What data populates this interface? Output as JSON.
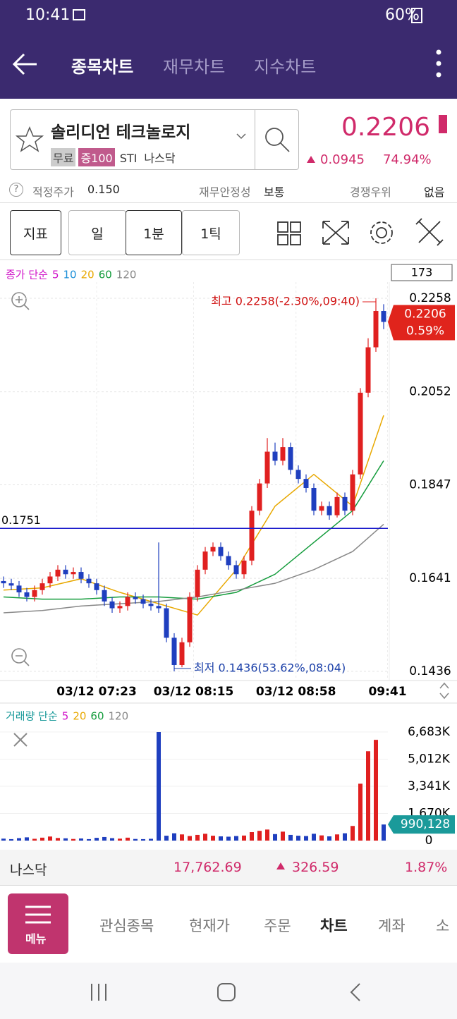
{
  "status": {
    "time": "10:41",
    "battery": "60%"
  },
  "header": {
    "tabs": [
      "종목차트",
      "재무차트",
      "지수차트"
    ]
  },
  "stock": {
    "name": "솔리디언 테크놀로지",
    "tags": [
      "무료",
      "증100",
      "STI",
      "나스닥"
    ],
    "price": "0.2206",
    "change": "0.0945",
    "change_pct": "74.94%"
  },
  "info": {
    "help": "?",
    "fair_label": "적정주가",
    "fair_value": "0.150",
    "stability_label": "재무안정성",
    "stability_value": "보통",
    "moat_label": "경쟁우위",
    "moat_value": "없음"
  },
  "toolbar": {
    "indicator": "지표",
    "periods": [
      "일",
      "1분",
      "1틱"
    ]
  },
  "chart_data": [
    {
      "type": "candlestick",
      "legend_title": "종가 단순",
      "legend": [
        {
          "name": "5",
          "color": "#d010c8"
        },
        {
          "name": "10",
          "color": "#1e90d8"
        },
        {
          "name": "20",
          "color": "#e8a800"
        },
        {
          "name": "60",
          "color": "#149c3c"
        },
        {
          "name": "120",
          "color": "#888888"
        }
      ],
      "count": "173",
      "open": [
        0.1635,
        0.163,
        0.1625,
        0.161,
        0.16,
        0.1615,
        0.163,
        0.1645,
        0.166,
        0.165,
        0.1655,
        0.164,
        0.163,
        0.1615,
        0.159,
        0.1575,
        0.158,
        0.16,
        0.1595,
        0.1585,
        0.158,
        0.1575,
        0.151,
        0.145,
        0.15,
        0.16,
        0.166,
        0.17,
        0.171,
        0.169,
        0.167,
        0.165,
        0.168,
        0.179,
        0.185,
        0.192,
        0.19,
        0.193,
        0.188,
        0.186,
        0.184,
        0.179,
        0.18,
        0.178,
        0.182,
        0.179,
        0.187,
        0.205,
        0.215,
        0.223
      ],
      "high": [
        0.1645,
        0.164,
        0.1635,
        0.162,
        0.1625,
        0.164,
        0.1655,
        0.167,
        0.167,
        0.1665,
        0.1665,
        0.165,
        0.164,
        0.1625,
        0.16,
        0.159,
        0.161,
        0.161,
        0.1605,
        0.1595,
        0.172,
        0.1585,
        0.152,
        0.151,
        0.161,
        0.167,
        0.171,
        0.172,
        0.172,
        0.17,
        0.168,
        0.169,
        0.18,
        0.186,
        0.195,
        0.194,
        0.195,
        0.194,
        0.189,
        0.187,
        0.185,
        0.181,
        0.181,
        0.183,
        0.183,
        0.188,
        0.206,
        0.217,
        0.2258,
        0.2245
      ],
      "low": [
        0.162,
        0.1615,
        0.16,
        0.159,
        0.159,
        0.1605,
        0.162,
        0.1635,
        0.164,
        0.164,
        0.163,
        0.162,
        0.1605,
        0.158,
        0.1565,
        0.1565,
        0.157,
        0.1585,
        0.1575,
        0.157,
        0.1565,
        0.15,
        0.1436,
        0.1445,
        0.149,
        0.159,
        0.165,
        0.169,
        0.168,
        0.166,
        0.164,
        0.164,
        0.167,
        0.178,
        0.184,
        0.189,
        0.189,
        0.187,
        0.185,
        0.183,
        0.178,
        0.178,
        0.177,
        0.1775,
        0.178,
        0.178,
        0.186,
        0.204,
        0.214,
        0.219
      ],
      "close": [
        0.163,
        0.1625,
        0.161,
        0.16,
        0.1615,
        0.163,
        0.1645,
        0.166,
        0.165,
        0.1655,
        0.164,
        0.163,
        0.1615,
        0.159,
        0.1575,
        0.158,
        0.16,
        0.1595,
        0.1585,
        0.158,
        0.1575,
        0.151,
        0.145,
        0.15,
        0.16,
        0.166,
        0.17,
        0.171,
        0.169,
        0.167,
        0.165,
        0.168,
        0.179,
        0.185,
        0.192,
        0.19,
        0.193,
        0.188,
        0.186,
        0.184,
        0.179,
        0.18,
        0.178,
        0.182,
        0.179,
        0.187,
        0.205,
        0.215,
        0.223,
        0.2206
      ],
      "up_color": "#e02020",
      "down_color": "#1f3fbf",
      "ylim": [
        0.1436,
        0.2258
      ],
      "yticks": [
        0.2258,
        0.2052,
        0.1847,
        0.1641,
        0.1436
      ],
      "xticks": [
        {
          "value": 12,
          "label": "03/12 07:23"
        },
        {
          "value": 24.5,
          "label": "03/12 08:15"
        },
        {
          "value": 37.7,
          "label": "03/12 08:58"
        },
        {
          "value": 49.5,
          "label": "09:41"
        }
      ],
      "series": [
        {
          "name": "20",
          "color": "#e8a800",
          "x": [
            0,
            5,
            10,
            15,
            20,
            25,
            30,
            35,
            40,
            45,
            49
          ],
          "values": [
            0.1615,
            0.162,
            0.164,
            0.161,
            0.1585,
            0.156,
            0.166,
            0.18,
            0.187,
            0.18,
            0.2
          ]
        },
        {
          "name": "60",
          "color": "#149c3c",
          "x": [
            0,
            5,
            10,
            15,
            20,
            25,
            30,
            35,
            40,
            45,
            49
          ],
          "values": [
            0.16,
            0.1595,
            0.1595,
            0.16,
            0.16,
            0.1595,
            0.161,
            0.165,
            0.172,
            0.179,
            0.19
          ]
        },
        {
          "name": "120",
          "color": "#888888",
          "x": [
            0,
            5,
            10,
            15,
            20,
            25,
            30,
            35,
            40,
            45,
            49
          ],
          "values": [
            0.1565,
            0.157,
            0.158,
            0.1585,
            0.159,
            0.16,
            0.1615,
            0.163,
            0.166,
            0.17,
            0.176
          ]
        }
      ],
      "hline": 0.1751,
      "hline_color": "#1a1acc",
      "current": 0.2206,
      "current_pct": "0.59%",
      "max_annotation": "최고 0.2258(-2.30%,09:40)",
      "min_annotation": "최저 0.1436(53.62%,08:04)"
    },
    {
      "type": "bar",
      "legend_title": "거래량 단순",
      "legend": [
        {
          "name": "5",
          "color": "#d010c8"
        },
        {
          "name": "20",
          "color": "#e8a800"
        },
        {
          "name": "60",
          "color": "#149c3c"
        },
        {
          "name": "120",
          "color": "#888888"
        }
      ],
      "values": [
        120000,
        90000,
        150000,
        200000,
        110000,
        180000,
        250000,
        160000,
        140000,
        100000,
        130000,
        90000,
        170000,
        220000,
        150000,
        120000,
        180000,
        100000,
        90000,
        110000,
        6683000,
        300000,
        450000,
        380000,
        280000,
        350000,
        420000,
        300000,
        260000,
        240000,
        280000,
        310000,
        520000,
        600000,
        680000,
        400000,
        550000,
        350000,
        300000,
        280000,
        420000,
        320000,
        260000,
        380000,
        450000,
        900000,
        3500000,
        5500000,
        6200000,
        990128
      ],
      "ylim": [
        0,
        6683000
      ],
      "yticks": [
        {
          "value": 6683000,
          "label": "6,683K"
        },
        {
          "value": 5012000,
          "label": "5,012K"
        },
        {
          "value": 3341000,
          "label": "3,341K"
        },
        {
          "value": 1670000,
          "label": "1,670K"
        },
        0
      ],
      "current": {
        "value": 990128,
        "label": "990,128"
      },
      "current_color": "#1a9a9a"
    }
  ],
  "index_row": {
    "name": "나스닥",
    "value": "17,762.69",
    "change": "326.59",
    "pct": "1.87%"
  },
  "nav": {
    "menu": "메뉴",
    "tabs": [
      "관심종목",
      "현재가",
      "주문",
      "차트",
      "계좌",
      "소"
    ]
  }
}
